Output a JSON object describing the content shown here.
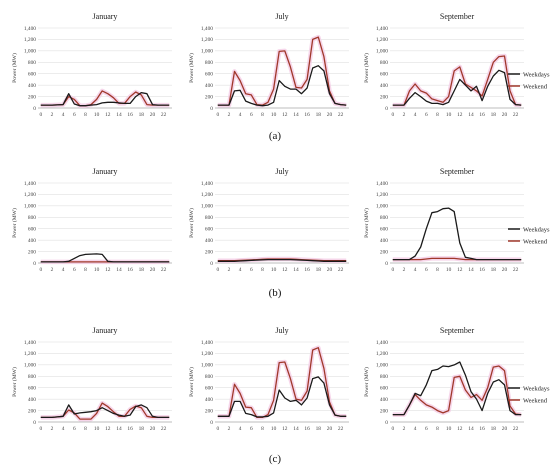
{
  "colors": {
    "weekdays": "#1a1a1a",
    "weekend": "#a0382b",
    "weekend_glow": "#f5cfe6",
    "grid": "#d9d9d9",
    "axis": "#a6a6a6"
  },
  "panel_labels": [
    "(a)",
    "(b)",
    "(c)"
  ],
  "chart_data": [
    {
      "type": "line",
      "panel": "(a)",
      "title": "January",
      "ylabel": "Power (MW)",
      "ylim": [
        0,
        1400
      ],
      "y_ticks": [
        "0",
        "200",
        "400",
        "600",
        "800",
        "1,000",
        "1,200",
        "1,400"
      ],
      "x": [
        0,
        1,
        2,
        3,
        4,
        5,
        6,
        7,
        8,
        9,
        10,
        11,
        12,
        13,
        14,
        15,
        16,
        17,
        18,
        19,
        20,
        21,
        22,
        23
      ],
      "x_tick_labels": [
        "0",
        "2",
        "4",
        "6",
        "8",
        "10",
        "12",
        "14",
        "16",
        "18",
        "20",
        "22"
      ],
      "grid": true,
      "legend": "none",
      "series": [
        {
          "name": "Weekdays",
          "values": [
            50,
            50,
            50,
            55,
            60,
            250,
            70,
            40,
            40,
            50,
            60,
            90,
            100,
            100,
            90,
            80,
            80,
            200,
            270,
            250,
            60,
            50,
            50,
            50
          ]
        },
        {
          "name": "Weekend",
          "values": [
            50,
            50,
            50,
            55,
            60,
            200,
            150,
            40,
            40,
            60,
            150,
            300,
            250,
            180,
            80,
            80,
            200,
            280,
            230,
            60,
            50,
            50,
            50,
            50
          ]
        }
      ]
    },
    {
      "type": "line",
      "panel": "(a)",
      "title": "July",
      "ylabel": "Power (MW)",
      "ylim": [
        0,
        1400
      ],
      "y_ticks": [
        "0",
        "200",
        "400",
        "600",
        "800",
        "1,000",
        "1,200",
        "1,400"
      ],
      "x": [
        0,
        1,
        2,
        3,
        4,
        5,
        6,
        7,
        8,
        9,
        10,
        11,
        12,
        13,
        14,
        15,
        16,
        17,
        18,
        19,
        20,
        21,
        22,
        23
      ],
      "x_tick_labels": [
        "0",
        "2",
        "4",
        "6",
        "8",
        "10",
        "12",
        "14",
        "16",
        "18",
        "20",
        "22"
      ],
      "grid": true,
      "legend": "none",
      "series": [
        {
          "name": "Weekdays",
          "values": [
            50,
            50,
            50,
            300,
            310,
            120,
            80,
            50,
            40,
            50,
            100,
            480,
            380,
            330,
            330,
            250,
            350,
            700,
            740,
            650,
            250,
            80,
            60,
            50
          ]
        },
        {
          "name": "Weekend",
          "values": [
            50,
            50,
            50,
            640,
            480,
            250,
            230,
            60,
            50,
            100,
            330,
            990,
            1000,
            720,
            360,
            350,
            500,
            1200,
            1240,
            900,
            300,
            80,
            60,
            50
          ]
        }
      ]
    },
    {
      "type": "line",
      "panel": "(a)",
      "title": "September",
      "ylabel": "Power (MW)",
      "ylim": [
        0,
        1400
      ],
      "y_ticks": [
        "0",
        "200",
        "400",
        "600",
        "800",
        "1,000",
        "1,200",
        "1,400"
      ],
      "x": [
        0,
        1,
        2,
        3,
        4,
        5,
        6,
        7,
        8,
        9,
        10,
        11,
        12,
        13,
        14,
        15,
        16,
        17,
        18,
        19,
        20,
        21,
        22,
        23
      ],
      "x_tick_labels": [
        "0",
        "2",
        "4",
        "6",
        "8",
        "10",
        "12",
        "14",
        "16",
        "18",
        "20",
        "22"
      ],
      "grid": true,
      "legend": "right",
      "series": [
        {
          "name": "Weekdays",
          "values": [
            50,
            50,
            50,
            170,
            270,
            200,
            120,
            80,
            80,
            60,
            100,
            300,
            500,
            400,
            300,
            380,
            130,
            380,
            560,
            660,
            620,
            150,
            60,
            50
          ]
        },
        {
          "name": "Weekend",
          "values": [
            50,
            50,
            50,
            300,
            420,
            300,
            260,
            160,
            130,
            100,
            200,
            650,
            720,
            420,
            360,
            300,
            210,
            500,
            800,
            900,
            910,
            300,
            60,
            50
          ]
        }
      ]
    },
    {
      "type": "line",
      "panel": "(b)",
      "title": "January",
      "ylabel": "Power (MW)",
      "ylim": [
        0,
        1400
      ],
      "y_ticks": [
        "0",
        "200",
        "400",
        "600",
        "800",
        "1,000",
        "1,200",
        "1,400"
      ],
      "x": [
        0,
        1,
        2,
        3,
        4,
        5,
        6,
        7,
        8,
        9,
        10,
        11,
        12,
        13,
        14,
        15,
        16,
        17,
        18,
        19,
        20,
        21,
        22,
        23
      ],
      "x_tick_labels": [
        "0",
        "2",
        "4",
        "6",
        "8",
        "10",
        "12",
        "14",
        "16",
        "18",
        "20",
        "22"
      ],
      "grid": true,
      "legend": "none",
      "series": [
        {
          "name": "Weekdays",
          "values": [
            20,
            20,
            20,
            20,
            20,
            30,
            80,
            130,
            150,
            155,
            160,
            150,
            30,
            20,
            20,
            20,
            20,
            20,
            20,
            20,
            20,
            20,
            20,
            20
          ]
        },
        {
          "name": "Weekend",
          "values": [
            20,
            20,
            20,
            20,
            20,
            20,
            20,
            20,
            20,
            20,
            20,
            20,
            20,
            20,
            20,
            20,
            20,
            20,
            20,
            20,
            20,
            20,
            20,
            20
          ]
        }
      ]
    },
    {
      "type": "line",
      "panel": "(b)",
      "title": "July",
      "ylabel": "Power (MW)",
      "ylim": [
        0,
        1400
      ],
      "y_ticks": [
        "0",
        "200",
        "400",
        "600",
        "800",
        "1,000",
        "1,200",
        "1,400"
      ],
      "x": [
        0,
        1,
        2,
        3,
        4,
        5,
        6,
        7,
        8,
        9,
        10,
        11,
        12,
        13,
        14,
        15,
        16,
        17,
        18,
        19,
        20,
        21,
        22,
        23
      ],
      "x_tick_labels": [
        "0",
        "2",
        "4",
        "6",
        "8",
        "10",
        "12",
        "14",
        "16",
        "18",
        "20",
        "22"
      ],
      "grid": true,
      "legend": "none",
      "series": [
        {
          "name": "Weekdays",
          "values": [
            30,
            30,
            30,
            30,
            35,
            40,
            45,
            50,
            55,
            60,
            60,
            60,
            60,
            60,
            55,
            50,
            45,
            40,
            35,
            30,
            30,
            30,
            30,
            30
          ]
        },
        {
          "name": "Weekend",
          "values": [
            40,
            40,
            40,
            40,
            45,
            50,
            55,
            60,
            65,
            70,
            70,
            70,
            70,
            70,
            65,
            60,
            55,
            50,
            45,
            40,
            40,
            40,
            40,
            40
          ]
        }
      ]
    },
    {
      "type": "line",
      "panel": "(b)",
      "title": "September",
      "ylabel": "Power (MW)",
      "ylim": [
        0,
        1400
      ],
      "y_ticks": [
        "0",
        "200",
        "400",
        "600",
        "800",
        "1,000",
        "1,200",
        "1,400"
      ],
      "x": [
        0,
        1,
        2,
        3,
        4,
        5,
        6,
        7,
        8,
        9,
        10,
        11,
        12,
        13,
        14,
        15,
        16,
        17,
        18,
        19,
        20,
        21,
        22,
        23
      ],
      "x_tick_labels": [
        "0",
        "2",
        "4",
        "6",
        "8",
        "10",
        "12",
        "14",
        "16",
        "18",
        "20",
        "22"
      ],
      "grid": true,
      "legend": "right",
      "series": [
        {
          "name": "Weekdays",
          "values": [
            60,
            60,
            60,
            60,
            120,
            280,
            600,
            880,
            900,
            950,
            960,
            900,
            350,
            100,
            80,
            60,
            60,
            60,
            60,
            60,
            60,
            60,
            60,
            60
          ]
        },
        {
          "name": "Weekend",
          "values": [
            60,
            60,
            60,
            60,
            60,
            60,
            70,
            80,
            80,
            80,
            80,
            80,
            70,
            60,
            60,
            60,
            60,
            60,
            60,
            60,
            60,
            60,
            60,
            60
          ]
        }
      ]
    },
    {
      "type": "line",
      "panel": "(c)",
      "title": "January",
      "ylabel": "Power (MW)",
      "ylim": [
        0,
        1400
      ],
      "y_ticks": [
        "0",
        "200",
        "400",
        "600",
        "800",
        "1,000",
        "1,200",
        "1,400"
      ],
      "x": [
        0,
        1,
        2,
        3,
        4,
        5,
        6,
        7,
        8,
        9,
        10,
        11,
        12,
        13,
        14,
        15,
        16,
        17,
        18,
        19,
        20,
        21,
        22,
        23
      ],
      "x_tick_labels": [
        "0",
        "2",
        "4",
        "6",
        "8",
        "10",
        "12",
        "14",
        "16",
        "18",
        "20",
        "22"
      ],
      "grid": true,
      "legend": "none",
      "series": [
        {
          "name": "Weekdays",
          "values": [
            80,
            80,
            80,
            90,
            100,
            300,
            140,
            160,
            170,
            180,
            200,
            250,
            200,
            150,
            120,
            100,
            120,
            270,
            300,
            250,
            100,
            80,
            80,
            80
          ]
        },
        {
          "name": "Weekend",
          "values": [
            80,
            80,
            80,
            90,
            100,
            210,
            160,
            50,
            50,
            50,
            150,
            330,
            270,
            180,
            100,
            100,
            220,
            280,
            250,
            100,
            80,
            80,
            80,
            80
          ]
        }
      ]
    },
    {
      "type": "line",
      "panel": "(c)",
      "title": "July",
      "ylabel": "Power (MW)",
      "ylim": [
        0,
        1400
      ],
      "y_ticks": [
        "0",
        "200",
        "400",
        "600",
        "800",
        "1,000",
        "1,200",
        "1,400"
      ],
      "x": [
        0,
        1,
        2,
        3,
        4,
        5,
        6,
        7,
        8,
        9,
        10,
        11,
        12,
        13,
        14,
        15,
        16,
        17,
        18,
        19,
        20,
        21,
        22,
        23
      ],
      "x_tick_labels": [
        "0",
        "2",
        "4",
        "6",
        "8",
        "10",
        "12",
        "14",
        "16",
        "18",
        "20",
        "22"
      ],
      "grid": true,
      "legend": "none",
      "series": [
        {
          "name": "Weekdays",
          "values": [
            100,
            100,
            100,
            360,
            360,
            150,
            130,
            90,
            90,
            100,
            160,
            560,
            420,
            360,
            380,
            300,
            420,
            760,
            790,
            680,
            300,
            120,
            100,
            100
          ]
        },
        {
          "name": "Weekend",
          "values": [
            100,
            100,
            100,
            660,
            500,
            260,
            250,
            80,
            80,
            130,
            380,
            1040,
            1050,
            760,
            400,
            380,
            540,
            1260,
            1300,
            940,
            350,
            120,
            100,
            100
          ]
        }
      ]
    },
    {
      "type": "line",
      "panel": "(c)",
      "title": "September",
      "ylabel": "Power (MW)",
      "ylim": [
        0,
        1400
      ],
      "y_ticks": [
        "0",
        "200",
        "400",
        "600",
        "800",
        "1,000",
        "1,200",
        "1,400"
      ],
      "x": [
        0,
        1,
        2,
        3,
        4,
        5,
        6,
        7,
        8,
        9,
        10,
        11,
        12,
        13,
        14,
        15,
        16,
        17,
        18,
        19,
        20,
        21,
        22,
        23
      ],
      "x_tick_labels": [
        "0",
        "2",
        "4",
        "6",
        "8",
        "10",
        "12",
        "14",
        "16",
        "18",
        "20",
        "22"
      ],
      "grid": true,
      "legend": "right",
      "series": [
        {
          "name": "Weekdays",
          "values": [
            130,
            130,
            130,
            300,
            500,
            460,
            650,
            900,
            920,
            980,
            970,
            1000,
            1050,
            820,
            530,
            400,
            200,
            500,
            700,
            740,
            650,
            200,
            130,
            130
          ]
        },
        {
          "name": "Weekend",
          "values": [
            130,
            130,
            130,
            300,
            480,
            380,
            300,
            260,
            200,
            160,
            200,
            780,
            800,
            560,
            430,
            480,
            380,
            600,
            960,
            980,
            900,
            280,
            140,
            130
          ]
        }
      ]
    }
  ]
}
